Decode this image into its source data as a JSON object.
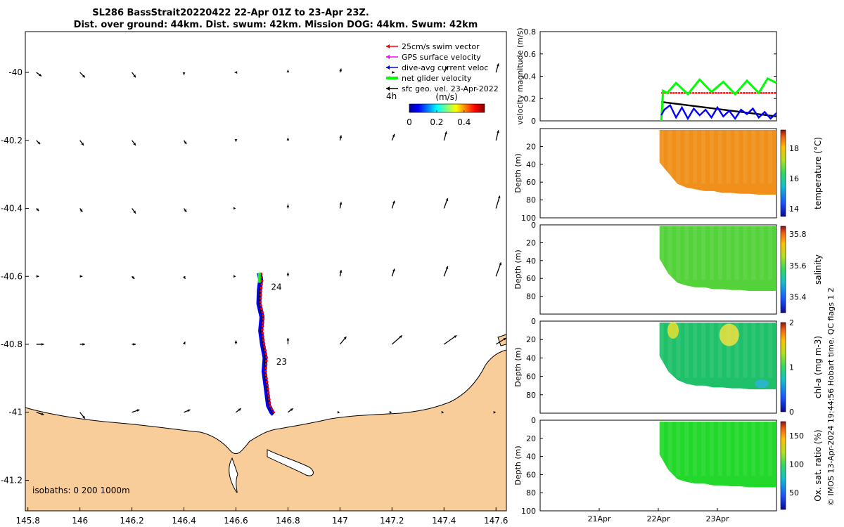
{
  "title": {
    "line1": "SL286 BassStrait20220422 22-Apr 01Z to 23-Apr 23Z.",
    "line2": "Dist. over ground: 44km. Dist. swum: 42km. Mission DOG: 44km. Swum: 42km"
  },
  "side_note": "© IMOS 13-Apr-2024 19:44:56 Hobart time. QC flags 1  2",
  "colors": {
    "land": "#f9cd9a",
    "swim_vector": "#ff0000",
    "gps_velocity": "#ff00ff",
    "current": "#0000ff",
    "net_velocity": "#00ff00",
    "geo_velocity": "#000000"
  },
  "chart_data": [
    {
      "type": "map",
      "id": "track_map",
      "x_ticks": [
        "145.8",
        "146",
        "146.2",
        "146.4",
        "146.6",
        "146.8",
        "147",
        "147.2",
        "147.4",
        "147.6"
      ],
      "x_values": [
        145.8,
        146.0,
        146.2,
        146.4,
        146.6,
        146.8,
        147.0,
        147.2,
        147.4,
        147.6
      ],
      "y_ticks": [
        "-40",
        "-40.2",
        "-40.4",
        "-40.6",
        "-40.8",
        "-41",
        "-41.2"
      ],
      "y_values": [
        -40.0,
        -40.2,
        -40.4,
        -40.6,
        -40.8,
        -41.0,
        -41.2
      ],
      "xlim": [
        145.79,
        147.64
      ],
      "ylim": [
        -41.29,
        -39.88
      ],
      "legend": [
        {
          "label": "25cm/s swim vector",
          "color": "#ff0000"
        },
        {
          "label": "GPS surface velocity",
          "color": "#ff00ff"
        },
        {
          "label": "dive-avg current veloc",
          "color": "#0000ff"
        },
        {
          "label": "net glider velocity",
          "color": "#00ff00"
        },
        {
          "label": "sfc geo. vel. 23-Apr-2022",
          "color": "#000000"
        }
      ],
      "legend_placement": "top-right",
      "vector_scale_label": "4h",
      "colorbar": {
        "title": "(m/s)",
        "ticks": [
          "0",
          "0.2",
          "0.4"
        ],
        "range": [
          0,
          0.55
        ]
      },
      "isobaths_label": "isobaths: 0   200   1000m",
      "track_labels": [
        {
          "text": "24",
          "lon": 146.735,
          "lat": -40.64
        },
        {
          "text": "23",
          "lon": 146.755,
          "lat": -40.86
        }
      ],
      "track": [
        [
          146.69,
          -40.59
        ],
        [
          146.695,
          -40.61
        ],
        [
          146.69,
          -40.64
        ],
        [
          146.688,
          -40.68
        ],
        [
          146.7,
          -40.72
        ],
        [
          146.695,
          -40.76
        ],
        [
          146.702,
          -40.8
        ],
        [
          146.712,
          -40.84
        ],
        [
          146.708,
          -40.88
        ],
        [
          146.715,
          -40.92
        ],
        [
          146.72,
          -40.95
        ],
        [
          146.725,
          -40.98
        ],
        [
          146.738,
          -41.0
        ],
        [
          146.745,
          -41.005
        ]
      ],
      "geo_vectors": [
        {
          "lat": -40.0,
          "u": [
            0.04,
            0.04,
            0.03,
            0.0,
            -0.01,
            0.0,
            0.01,
            0.02,
            0.03,
            0.02
          ],
          "v": [
            -0.03,
            -0.04,
            -0.04,
            -0.02,
            0.0,
            0.02,
            0.03,
            0.0,
            0.05,
            0.07
          ]
        },
        {
          "lat": -40.2,
          "u": [
            0.03,
            0.03,
            0.03,
            0.02,
            0.0,
            0.0,
            0.01,
            0.02,
            0.02,
            0.02
          ],
          "v": [
            -0.03,
            -0.04,
            -0.04,
            -0.03,
            -0.01,
            0.02,
            0.04,
            0.05,
            0.07,
            0.08
          ]
        },
        {
          "lat": -40.4,
          "u": [
            0.02,
            0.02,
            0.03,
            0.02,
            0.0,
            0.0,
            0.01,
            0.02,
            0.03,
            0.03
          ],
          "v": [
            -0.02,
            -0.03,
            -0.04,
            -0.03,
            0.0,
            0.03,
            0.05,
            0.06,
            0.08,
            0.1
          ]
        },
        {
          "lat": -40.6,
          "u": [
            0.02,
            0.02,
            0.02,
            0.01,
            0.0,
            0.0,
            0.01,
            0.02,
            0.03,
            0.04
          ],
          "v": [
            0.0,
            0.0,
            -0.02,
            -0.02,
            0.0,
            0.03,
            0.05,
            0.06,
            0.08,
            0.11
          ]
        },
        {
          "lat": -40.8,
          "u": [
            0.06,
            0.04,
            0.03,
            0.01,
            0.0,
            0.0,
            0.05,
            0.08,
            0.1,
            0.08
          ],
          "v": [
            0.0,
            0.0,
            0.0,
            0.02,
            0.03,
            0.05,
            0.06,
            0.07,
            0.07,
            0.05
          ]
        },
        {
          "lat": -41.0,
          "u": [
            0.06,
            0.04,
            0.06,
            0.05,
            0.04,
            0.04,
            0.0,
            0.0,
            0.0,
            0.0
          ],
          "v": [
            -0.02,
            -0.05,
            0.02,
            0.02,
            0.03,
            0.03,
            0.0,
            0.0,
            0.0,
            0.0
          ]
        }
      ]
    },
    {
      "type": "line",
      "id": "velocity_panel",
      "ylabel": "velocity magnitude (m/s)",
      "y_ticks": [
        "0",
        "0.2",
        "0.4",
        "0.6",
        "0.8"
      ],
      "ylim": [
        0,
        0.8
      ],
      "xlim_days": [
        20.0,
        24.0
      ],
      "series": [
        {
          "color": "#ff0000",
          "t": [
            22.05,
            24.0
          ],
          "v": [
            0.25,
            0.25
          ]
        },
        {
          "color": "#000000",
          "t": [
            22.05,
            24.0
          ],
          "v": [
            0.17,
            0.04
          ]
        },
        {
          "color": "#00ff00",
          "t": [
            22.05,
            22.08,
            22.15,
            22.3,
            22.5,
            22.7,
            22.9,
            23.1,
            23.3,
            23.5,
            23.7,
            23.85,
            24.0
          ],
          "v": [
            0.0,
            0.27,
            0.25,
            0.34,
            0.24,
            0.37,
            0.26,
            0.35,
            0.24,
            0.36,
            0.25,
            0.38,
            0.34
          ]
        },
        {
          "color": "#0000ff",
          "t": [
            22.05,
            22.1,
            22.2,
            22.3,
            22.4,
            22.5,
            22.6,
            22.7,
            22.8,
            22.9,
            23.0,
            23.1,
            23.2,
            23.3,
            23.4,
            23.5,
            23.6,
            23.7,
            23.8,
            23.9,
            24.0
          ],
          "v": [
            0.05,
            0.1,
            0.14,
            0.03,
            0.12,
            0.02,
            0.11,
            0.05,
            0.1,
            0.03,
            0.12,
            0.04,
            0.09,
            0.02,
            0.1,
            0.06,
            0.11,
            0.03,
            0.08,
            0.02,
            0.07
          ]
        }
      ]
    },
    {
      "type": "heatmap",
      "id": "temperature_panel",
      "ylabel": "Depth (m)",
      "y_ticks": [
        "20",
        "40",
        "60",
        "80",
        "100"
      ],
      "ylim": [
        0,
        100
      ],
      "colorbar_label": "temperature (°C)",
      "colorbar_ticks": [
        "14",
        "16",
        "18"
      ],
      "colorbar_range": [
        13.5,
        19.2
      ],
      "base_color": "#f0901a",
      "bottom_depths": [
        38,
        50,
        62,
        66,
        68,
        70,
        70,
        72,
        72,
        73,
        73,
        74,
        74,
        74
      ]
    },
    {
      "type": "heatmap",
      "id": "salinity_panel",
      "ylabel": "Depth (m)",
      "y_ticks": [
        "0",
        "20",
        "40",
        "60",
        "80"
      ],
      "ylim": [
        0,
        100
      ],
      "colorbar_label": "salinity",
      "colorbar_ticks": [
        "35.4",
        "35.6",
        "35.8"
      ],
      "colorbar_range": [
        35.3,
        35.85
      ],
      "base_color": "#54d23a",
      "bottom_depths": [
        38,
        55,
        65,
        68,
        70,
        70,
        72,
        72,
        73,
        73,
        74,
        74,
        74,
        74
      ]
    },
    {
      "type": "heatmap",
      "id": "chla_panel",
      "ylabel": "Depth (m)",
      "y_ticks": [
        "0",
        "20",
        "40",
        "60",
        "80"
      ],
      "ylim": [
        0,
        100
      ],
      "colorbar_label": "chl-a (mg m-3)",
      "colorbar_ticks": [
        "0",
        "1",
        "2"
      ],
      "colorbar_range": [
        0,
        2
      ],
      "base_color": "#1fc06a",
      "bottom_depths": [
        38,
        55,
        64,
        68,
        70,
        70,
        72,
        72,
        73,
        73,
        74,
        74,
        74,
        74
      ]
    },
    {
      "type": "heatmap",
      "id": "oxygen_panel",
      "ylabel": "Depth (m)",
      "y_ticks": [
        "0",
        "20",
        "40",
        "60",
        "80",
        "100"
      ],
      "ylim": [
        0,
        100
      ],
      "colorbar_label": "Ox. sat. ratio (%)",
      "colorbar_ticks": [
        "50",
        "100",
        "150"
      ],
      "colorbar_range": [
        20,
        175
      ],
      "base_color": "#22d82a",
      "bottom_depths": [
        38,
        55,
        65,
        68,
        70,
        70,
        72,
        72,
        73,
        73,
        74,
        74,
        74,
        74
      ],
      "x_ticks": [
        "21Apr",
        "22Apr",
        "23Apr"
      ],
      "x_values": [
        21,
        22,
        23
      ]
    }
  ]
}
